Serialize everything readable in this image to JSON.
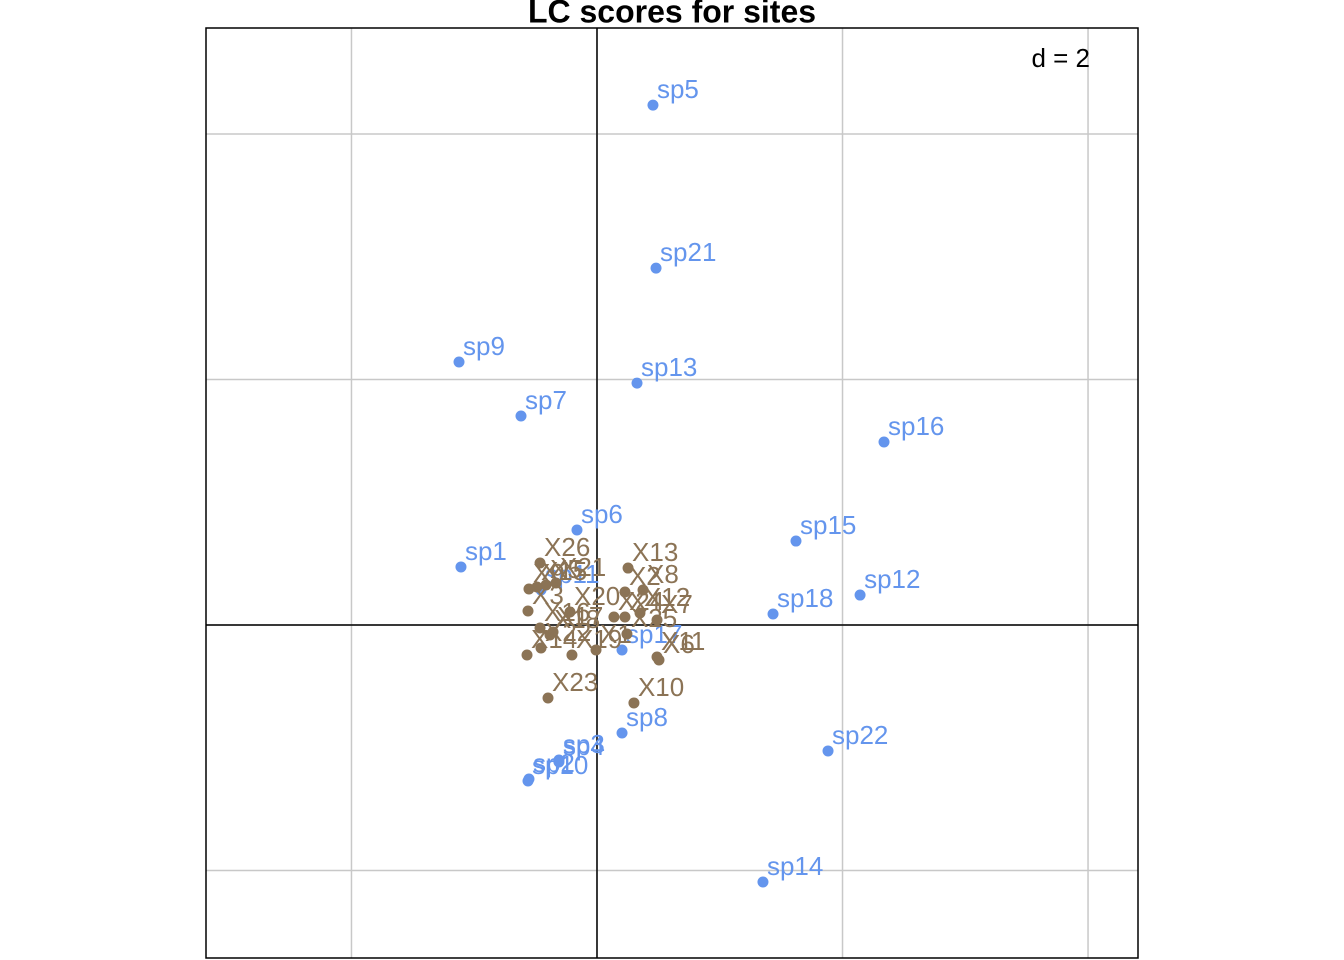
{
  "chart_data": {
    "type": "scatter",
    "title": "LC scores for sites",
    "annotation": "d = 2",
    "xlim": [
      -3.185,
      4.407
    ],
    "ylim": [
      -2.713,
      4.864
    ],
    "xticks": [
      -2,
      0,
      2,
      4
    ],
    "yticks": [
      -2,
      0,
      2,
      4
    ],
    "grid": true,
    "series": [
      {
        "color": "#6495ED",
        "labels": [
          "sp1",
          "sp2",
          "sp3",
          "sp4",
          "sp5",
          "sp6",
          "sp7",
          "sp8",
          "sp9",
          "sp10",
          "sp11",
          "sp12",
          "sp13",
          "sp14",
          "sp15",
          "sp16",
          "sp17",
          "sp18",
          "sp21",
          "sp22"
        ],
        "x": [
          -1.108,
          -0.554,
          -0.31,
          -0.31,
          0.456,
          -0.163,
          -0.619,
          0.204,
          -1.124,
          -0.562,
          -0.456,
          2.143,
          0.326,
          1.352,
          1.621,
          2.338,
          0.204,
          1.434,
          0.481,
          1.882
        ],
        "values": [
          0.473,
          -1.255,
          -1.1,
          -1.116,
          4.236,
          0.774,
          1.703,
          -0.88,
          2.143,
          -1.271,
          0.285,
          0.244,
          1.971,
          -2.094,
          0.684,
          1.491,
          -0.204,
          0.09,
          2.908,
          -1.026
        ]
      },
      {
        "color": "#8B7355",
        "labels": [
          "X1",
          "X2",
          "X3",
          "X4",
          "X5",
          "X6",
          "X7",
          "X8",
          "X9",
          "X10",
          "X11",
          "X12",
          "X13",
          "X14",
          "X15",
          "X16",
          "X17",
          "X18",
          "X19",
          "X20",
          "X21",
          "X22",
          "X23",
          "X24",
          "X25",
          "X26"
        ],
        "x": [
          -0.008,
          0.228,
          -0.562,
          0.228,
          -0.415,
          0.505,
          0.489,
          0.375,
          -0.554,
          0.301,
          0.489,
          0.35,
          0.253,
          -0.57,
          -0.489,
          -0.464,
          -0.358,
          -0.383,
          -0.204,
          -0.22,
          -0.334,
          -0.456,
          -0.399,
          0.138,
          0.244,
          -0.464
        ],
        "values": [
          -0.204,
          0.269,
          0.114,
          0.065,
          0.326,
          -0.285,
          0.041,
          0.285,
          0.293,
          -0.635,
          -0.261,
          0.098,
          0.464,
          -0.244,
          0.31,
          -0.024,
          -0.057,
          -0.081,
          -0.244,
          0.106,
          0.342,
          -0.187,
          -0.595,
          0.065,
          -0.073,
          0.505
        ]
      }
    ]
  }
}
